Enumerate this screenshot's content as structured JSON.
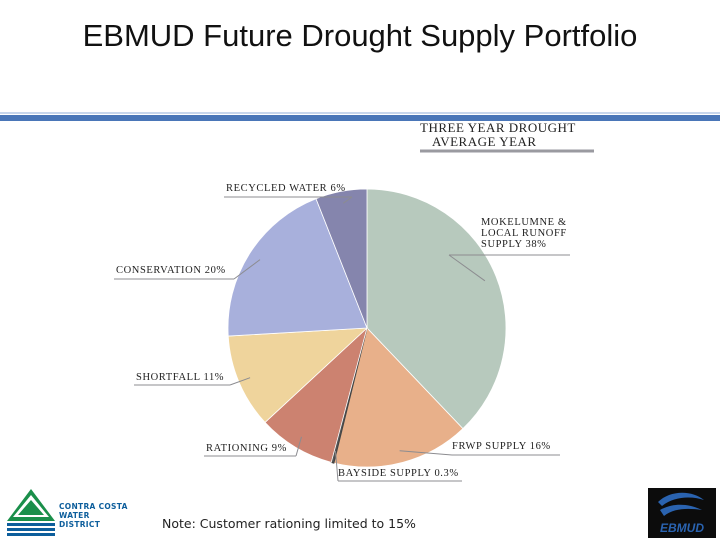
{
  "slide": {
    "title": "EBMUD Future Drought Supply Portfolio",
    "footnote": "Note: Customer rationing limited to 15%",
    "colors": {
      "accent_rule": "#4a76b8",
      "logo_blue": "#0d5e9c",
      "logo_green": "#1a8f4a"
    }
  },
  "logos": {
    "left_text_line1": "CONTRA COSTA",
    "left_text_line2": "WATER DISTRICT",
    "right_text": "EBMUD"
  },
  "chart_data": {
    "type": "pie",
    "legend_title_line1": "THREE YEAR DROUGHT",
    "legend_title_line2": "AVERAGE YEAR",
    "slices": [
      {
        "name": "Mokelumne & Local Runoff Supply",
        "value": 38,
        "color": "#b7c9bd",
        "label_lines": [
          "MOKELUMNE &",
          "LOCAL RUNOFF",
          "SUPPLY 38%"
        ]
      },
      {
        "name": "FRWP Supply",
        "value": 16,
        "color": "#e8b08a",
        "label_lines": [
          "FRWP SUPPLY 16%"
        ]
      },
      {
        "name": "Bayside Supply",
        "value": 0.3,
        "color": "#555555",
        "label_lines": [
          "BAYSIDE SUPPLY 0.3%"
        ]
      },
      {
        "name": "Rationing",
        "value": 9,
        "color": "#cc8270",
        "label_lines": [
          "RATIONING 9%"
        ]
      },
      {
        "name": "Shortfall",
        "value": 11,
        "color": "#efd49c",
        "label_lines": [
          "SHORTFALL 11%"
        ]
      },
      {
        "name": "Conservation",
        "value": 20,
        "color": "#a8b0dc",
        "label_lines": [
          "CONSERVATION 20%"
        ]
      },
      {
        "name": "Recycled Water",
        "value": 6,
        "color": "#8585ad",
        "label_lines": [
          "RECYCLED WATER 6%"
        ]
      }
    ]
  }
}
